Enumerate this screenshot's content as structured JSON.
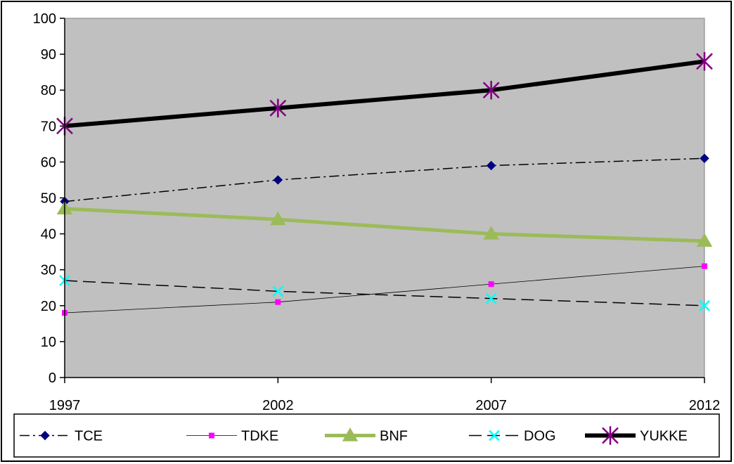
{
  "chart_data": {
    "type": "line",
    "title": "",
    "xlabel": "",
    "ylabel": "",
    "categories": [
      "1997",
      "2002",
      "2007",
      "2012"
    ],
    "ylim": [
      0,
      100
    ],
    "yticks": [
      0,
      10,
      20,
      30,
      40,
      50,
      60,
      70,
      80,
      90,
      100
    ],
    "grid": false,
    "plot_background": "#c0c0c0",
    "legend_position": "bottom",
    "series": [
      {
        "name": "TCE",
        "values": [
          49,
          55,
          59,
          61
        ],
        "color": "#000080",
        "marker": "diamond",
        "line": "dash-dot"
      },
      {
        "name": "TDKE",
        "values": [
          18,
          21,
          26,
          31
        ],
        "color": "#ff00ff",
        "marker": "square",
        "line": "thin-solid"
      },
      {
        "name": "BNF",
        "values": [
          47,
          44,
          40,
          38
        ],
        "color": "#9bbb59",
        "marker": "triangle",
        "line": "thick-solid"
      },
      {
        "name": "DOG",
        "values": [
          27,
          24,
          22,
          20
        ],
        "color": "#00ffff",
        "marker": "x",
        "line": "dashed"
      },
      {
        "name": "YUKKE",
        "values": [
          70,
          75,
          80,
          88
        ],
        "color": "#800080",
        "marker": "star",
        "line": "extra-thick-solid"
      }
    ]
  }
}
